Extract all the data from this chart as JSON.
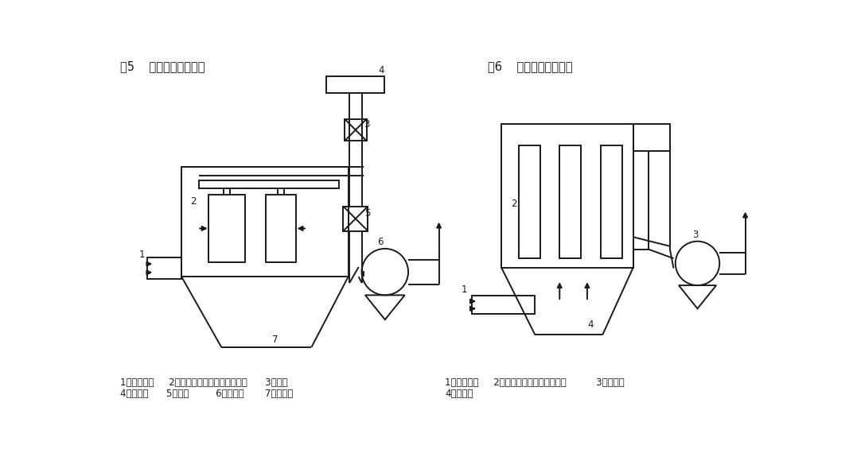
{
  "fig_title_left": "图5    外制式布袋收尘器",
  "fig_title_right": "图6    内制式布袋收尘器",
  "legend_left_line1": "1、烟气入口     2、袋房（箭头指烟气的方向）      3、阀门",
  "legend_left_line2": "4、压缩机      5、阀门         6、引风机       7、集尘器",
  "legend_right_line1": "1、烟气入口     2、袋房（箭头指烟气方向）          3、引风机",
  "legend_right_line2": "4、集尘器",
  "bg_color": "#ffffff",
  "line_color": "#1a1a1a",
  "lw": 1.4
}
